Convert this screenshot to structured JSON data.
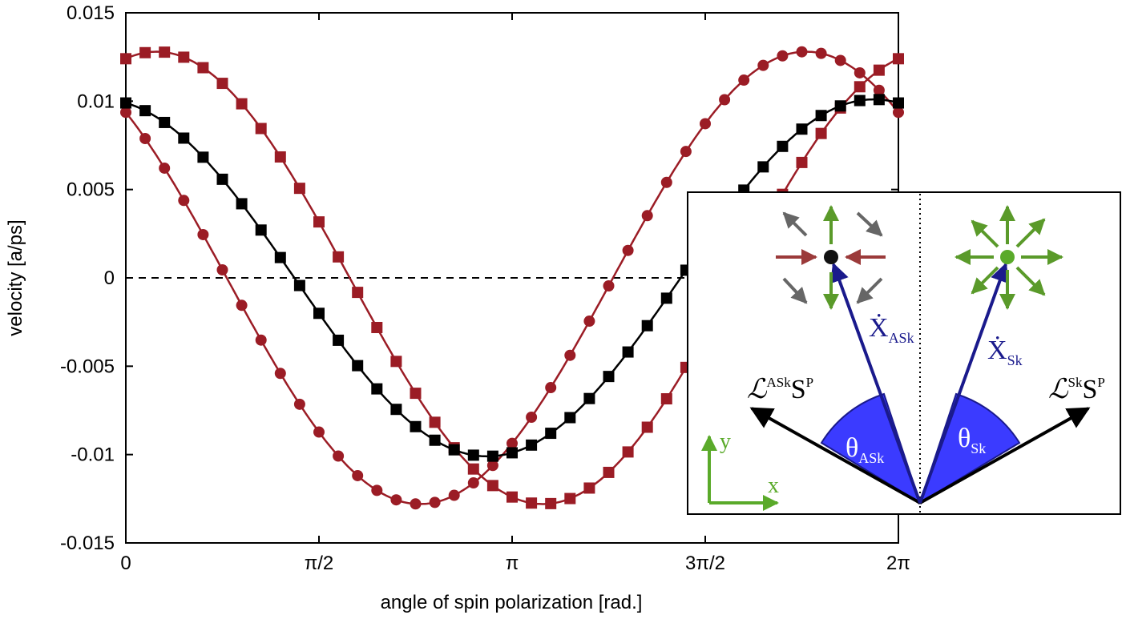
{
  "chart_data": {
    "type": "scatter",
    "title": "",
    "xlabel": "angle of spin polarization [rad.]",
    "ylabel": "velocity [a/ps]",
    "xlim": [
      0,
      6.2832
    ],
    "ylim": [
      -0.015,
      0.015
    ],
    "xticks": [
      {
        "value": 0,
        "label": "0"
      },
      {
        "value": 1.5708,
        "label": "π/2"
      },
      {
        "value": 3.1416,
        "label": "π"
      },
      {
        "value": 4.7124,
        "label": "3π/2"
      },
      {
        "value": 6.2832,
        "label": "2π"
      }
    ],
    "yticks": [
      {
        "value": 0.015,
        "label": "0.015"
      },
      {
        "value": 0.01,
        "label": "0.01"
      },
      {
        "value": 0.005,
        "label": "0.005"
      },
      {
        "value": 0,
        "label": "0"
      },
      {
        "value": -0.005,
        "label": "-0.005"
      },
      {
        "value": -0.01,
        "label": "-0.01"
      },
      {
        "value": -0.015,
        "label": "-0.015"
      }
    ],
    "zero_line": true,
    "grid": false,
    "legend": "none",
    "series": [
      {
        "marker": "square",
        "color": "#9b1c25",
        "amplitude": 0.0128,
        "phase": 0.25,
        "n_points": 41
      },
      {
        "marker": "circle",
        "color": "#9b1c25",
        "amplitude": 0.0128,
        "phase": -0.75,
        "n_points": 41
      },
      {
        "marker": "square",
        "color": "#000000",
        "amplitude": 0.0101,
        "phase": -0.2,
        "n_points": 41
      }
    ]
  },
  "inset": {
    "labels": {
      "x_dot": "Ẋ",
      "x_dot_ask_sub": "ASk",
      "x_dot_sk_sub": "Sk",
      "l_script": "ℒ",
      "ask_sup": "ASk",
      "sk_sup": "Sk",
      "s": "S",
      "p_sup": "P",
      "theta": "θ",
      "theta_ask_sub": "ASk",
      "theta_sk_sub": "Sk",
      "axis_y": "y",
      "axis_x": "x"
    },
    "colors": {
      "velocity_arrow": "#1a1a8c",
      "angle_fill": "#3b3bff",
      "spin_arrow_green": "#5a9a2a",
      "spin_arrow_red": "#9b3a3a",
      "spin_arrow_gray": "#666666",
      "axes_green": "#5aaa2a"
    }
  }
}
